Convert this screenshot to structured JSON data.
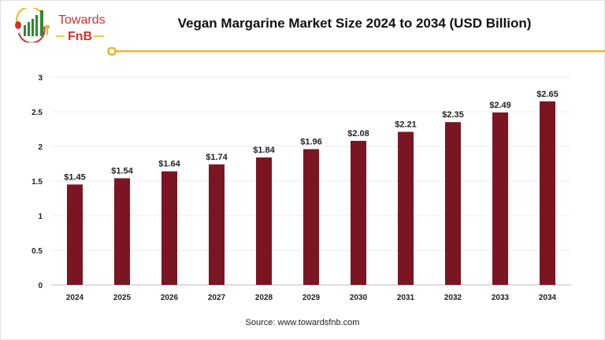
{
  "logo": {
    "line1": "Towards",
    "line2": "FnB"
  },
  "source": "Source: www.towardsfnb.com",
  "colors": {
    "bar": "#7b1522",
    "accent": "#f0b323",
    "logo_red": "#d0312d",
    "logo_green": "#2e8b2e"
  },
  "chart_data": {
    "type": "bar",
    "title": "Vegan Margarine Market Size 2024 to 2034 (USD Billion)",
    "categories": [
      "2024",
      "2025",
      "2026",
      "2027",
      "2028",
      "2029",
      "2030",
      "2031",
      "2032",
      "2033",
      "2034"
    ],
    "values": [
      1.45,
      1.54,
      1.64,
      1.74,
      1.84,
      1.96,
      2.08,
      2.21,
      2.35,
      2.49,
      2.65
    ],
    "data_labels": [
      "$1.45",
      "$1.54",
      "$1.64",
      "$1.74",
      "$1.84",
      "$1.96",
      "$2.08",
      "$2.21",
      "$2.35",
      "$2.49",
      "$2.65"
    ],
    "yticks": [
      "0",
      "0.5",
      "1",
      "1.5",
      "2",
      "2.5",
      "3"
    ],
    "ylim": [
      0,
      3
    ],
    "xlabel": "",
    "ylabel": "",
    "grid": true
  }
}
